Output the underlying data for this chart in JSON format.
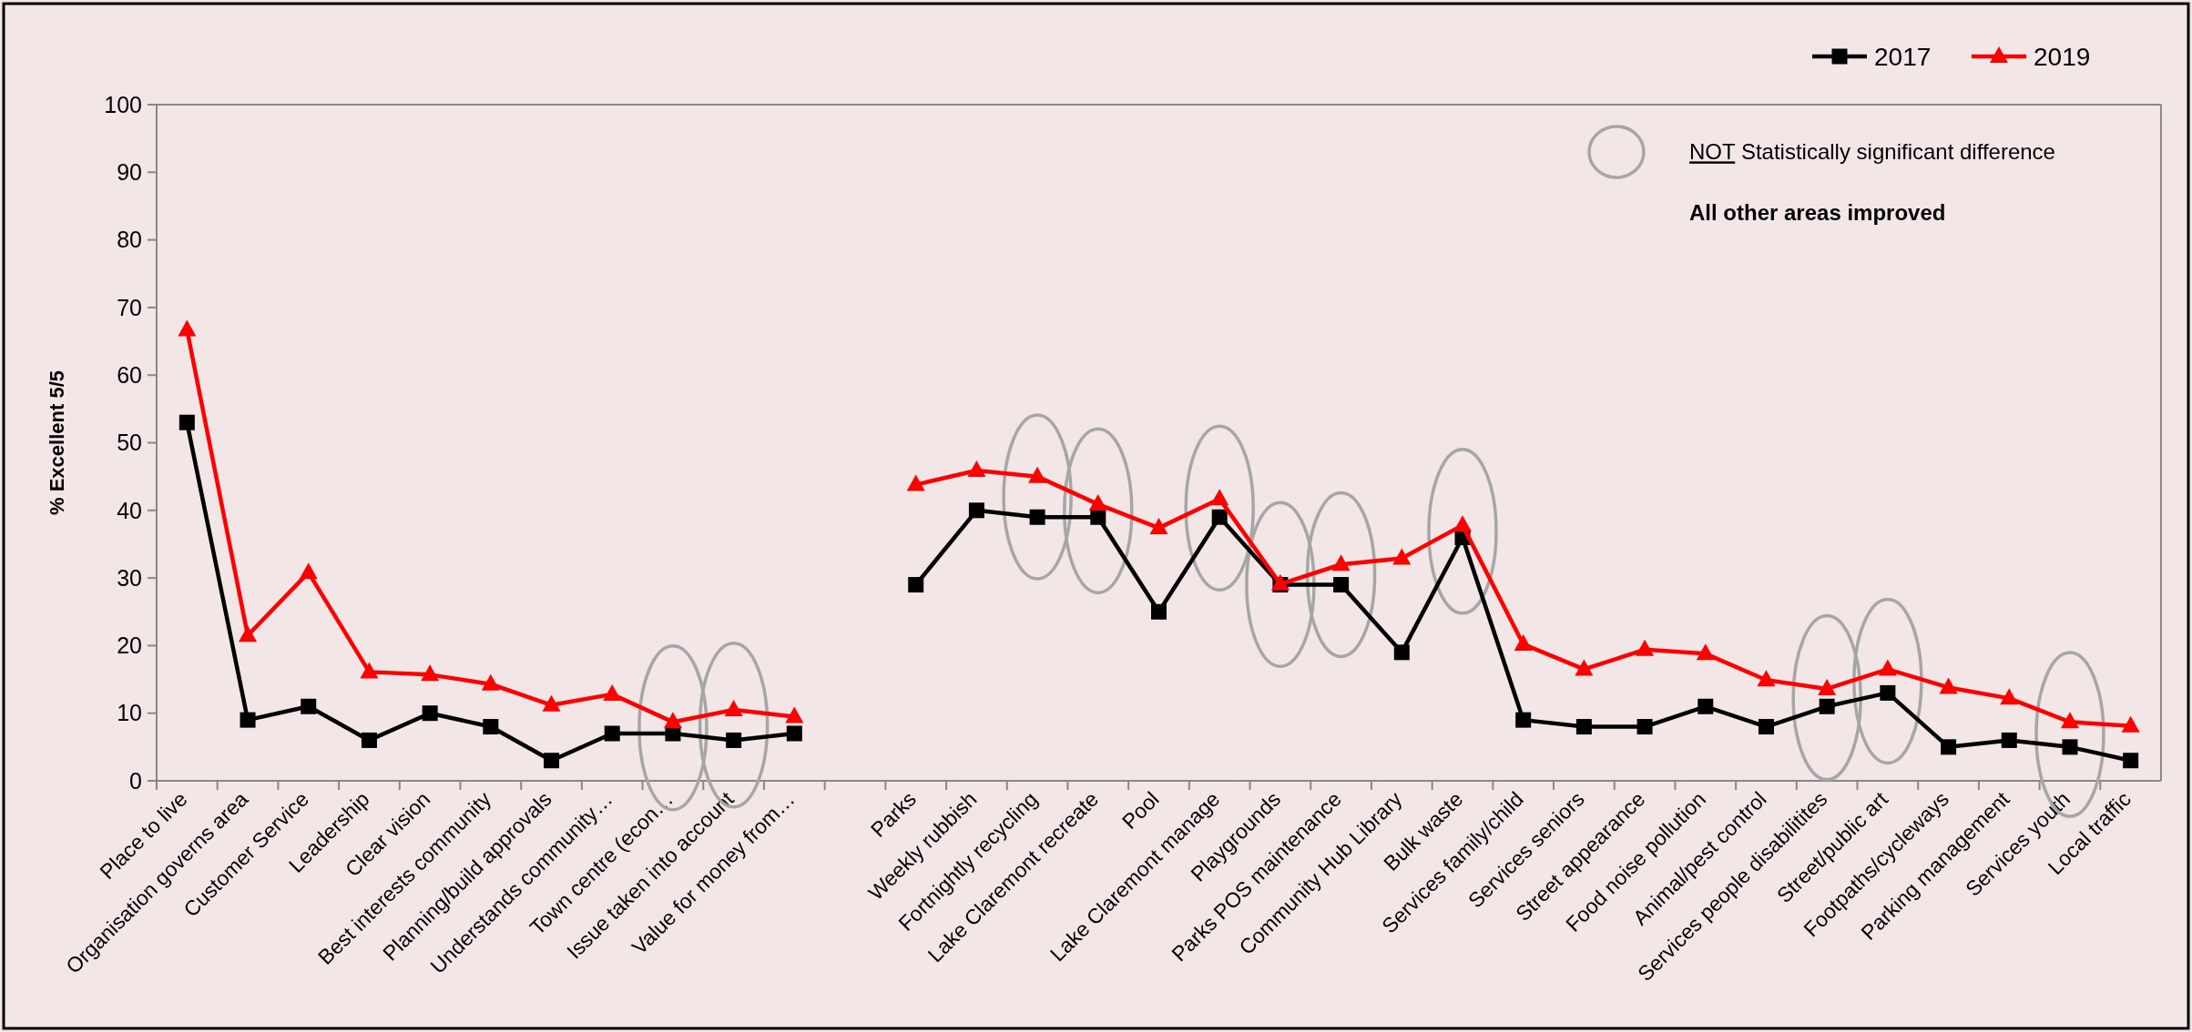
{
  "chart_data": {
    "type": "line",
    "ylabel": "% Excellent 5/5",
    "categories": [
      "Place to live",
      "Organisation governs area",
      "Customer Service",
      "Leadership",
      "Clear vision",
      "Best interests community",
      "Planning/build approvals",
      "Understands community…",
      "Town centre (econ…",
      "Issue taken into account",
      "Value for money from…",
      null,
      "Parks",
      "Weekly rubbish",
      "Fortnightly recycling",
      "Lake Claremont recreate",
      "Pool",
      "Lake Claremont manage",
      "Playgrounds",
      "Parks POS maintenance",
      "Community Hub Library",
      "Bulk waste",
      "Services family/child",
      "Services seniors",
      "Street appearance",
      "Food noise pollution",
      "Animal/pest control",
      "Services people disabilitites",
      "Street/public art",
      "Footpaths/cycleways",
      "Parking management",
      "Services youth",
      "Local traffic"
    ],
    "series": [
      {
        "name": "2017",
        "color": "#000000",
        "marker": "square",
        "values": [
          53,
          9,
          11,
          6,
          10,
          8,
          3,
          7,
          7,
          6,
          7,
          null,
          29,
          40,
          39,
          39,
          25,
          39,
          29,
          29,
          19,
          36,
          9,
          8,
          8,
          11,
          8,
          11,
          13,
          5,
          6,
          5,
          3
        ]
      },
      {
        "name": "2019",
        "color": "#ff0000",
        "marker": "triangle",
        "values": [
          66.7,
          21.5,
          30.8,
          16.1,
          15.7,
          14.3,
          11.2,
          12.8,
          8.7,
          10.5,
          9.5,
          null,
          43.8,
          45.9,
          45,
          40.9,
          37.4,
          41.7,
          29.1,
          32,
          32.9,
          37.8,
          20.2,
          16.5,
          19.4,
          18.8,
          14.9,
          13.6,
          16.5,
          13.8,
          12.2,
          8.7,
          8.1
        ]
      }
    ],
    "ylim": [
      0,
      100
    ],
    "yticks": [
      0,
      10,
      20,
      30,
      40,
      50,
      60,
      70,
      80,
      90,
      100
    ],
    "grid": false,
    "legend": "top right",
    "line_style": "solid",
    "annotations": [
      "NOT Statistically significant difference",
      "All other areas improved"
    ]
  }
}
